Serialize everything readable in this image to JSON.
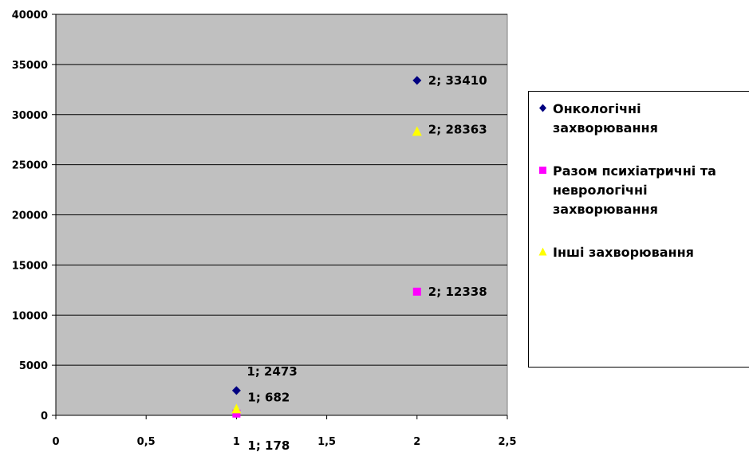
{
  "chart_data": {
    "type": "scatter",
    "title": "",
    "xlabel": "",
    "ylabel": "",
    "xlim": [
      0,
      2.5
    ],
    "ylim": [
      0,
      40000
    ],
    "x_ticks": [
      "0",
      "0,5",
      "1",
      "1,5",
      "2",
      "2,5"
    ],
    "x_tick_values": [
      0,
      0.5,
      1,
      1.5,
      2,
      2.5
    ],
    "y_ticks": [
      "0",
      "5000",
      "10000",
      "15000",
      "20000",
      "25000",
      "30000",
      "35000",
      "40000"
    ],
    "y_tick_values": [
      0,
      5000,
      10000,
      15000,
      20000,
      25000,
      30000,
      35000,
      40000
    ],
    "grid": "horizontal",
    "legend_position": "right",
    "plot_background": "#c0c0c0",
    "series": [
      {
        "name": "Онкологічні захворювання",
        "marker": "diamond",
        "color": "#000080",
        "points": [
          {
            "x": 1,
            "y": 2473,
            "label": "1; 2473"
          },
          {
            "x": 2,
            "y": 33410,
            "label": "2; 33410"
          }
        ]
      },
      {
        "name": "Разом психіатричні та неврологічні захворювання",
        "marker": "square",
        "color": "#ff00ff",
        "points": [
          {
            "x": 1,
            "y": 178,
            "label": "1; 178"
          },
          {
            "x": 2,
            "y": 12338,
            "label": "2; 12338"
          }
        ]
      },
      {
        "name": "Інші захворювання",
        "marker": "triangle",
        "color": "#ffff00",
        "points": [
          {
            "x": 1,
            "y": 682,
            "label": "1; 682"
          },
          {
            "x": 2,
            "y": 28363,
            "label": "2; 28363"
          }
        ]
      }
    ]
  }
}
